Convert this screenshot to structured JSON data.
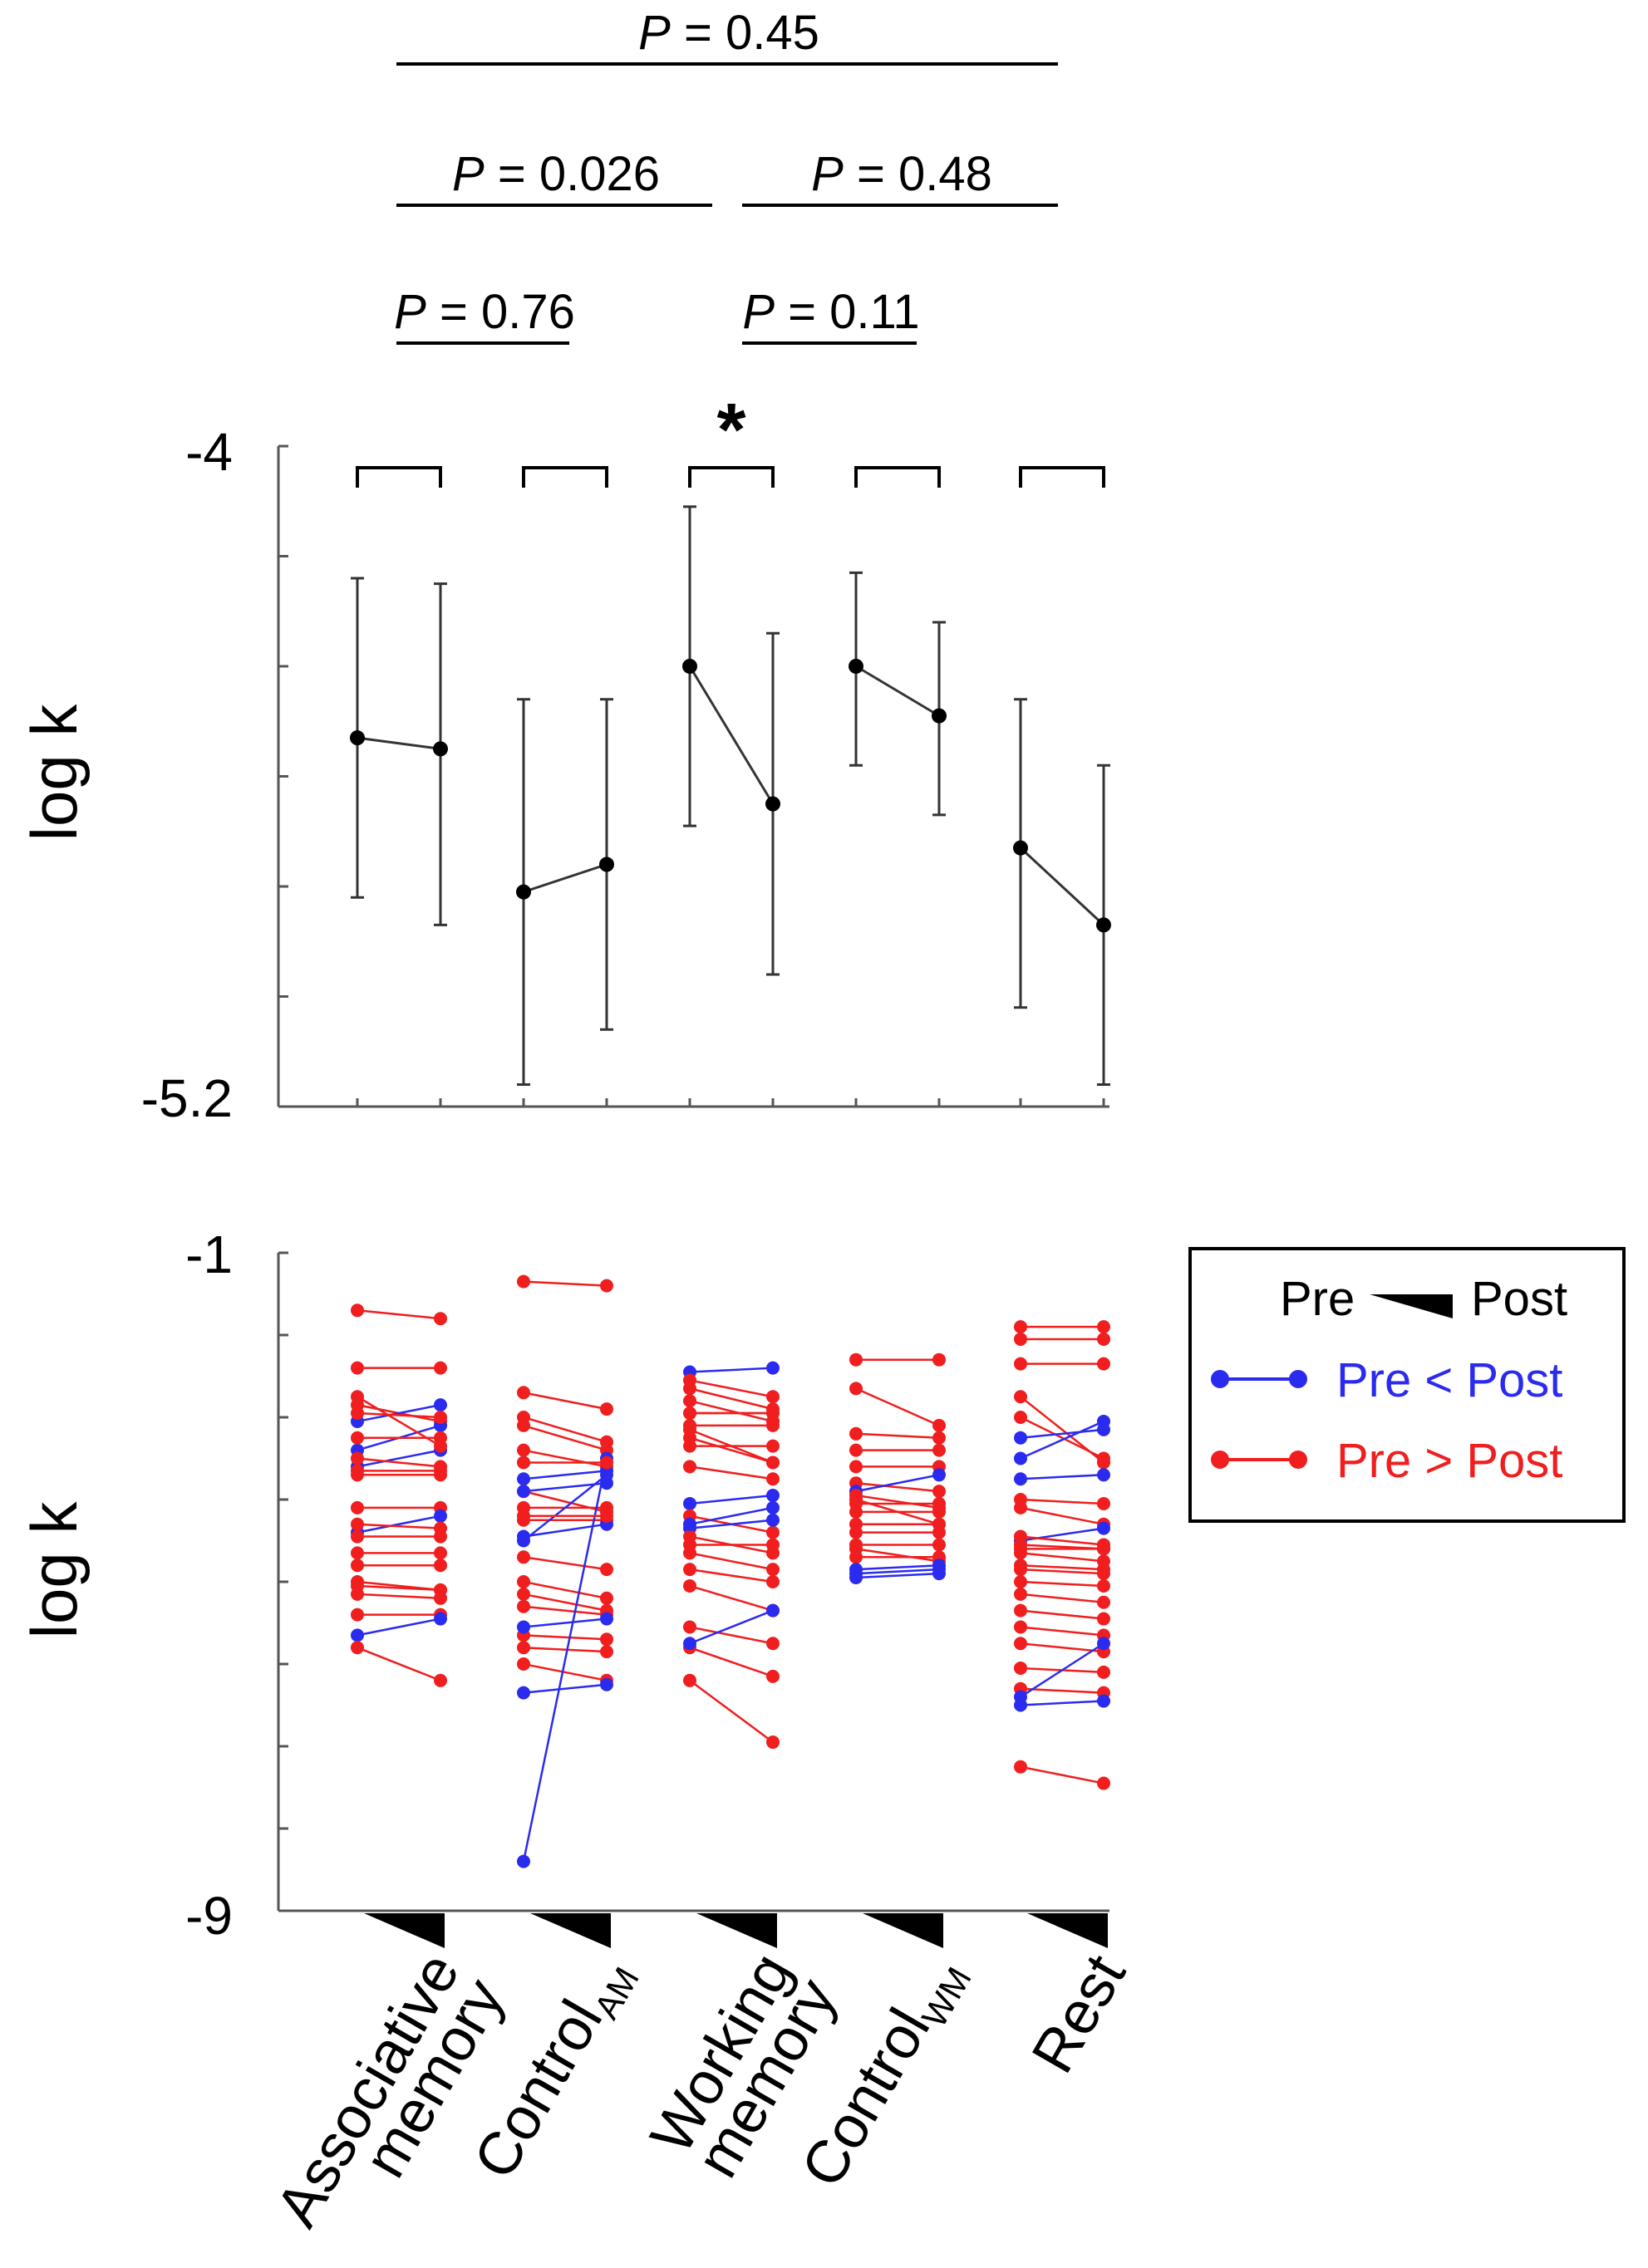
{
  "chart_data": [
    {
      "type": "line",
      "panel": "top",
      "ylabel": "log k",
      "ylim": [
        -5.2,
        -4
      ],
      "y_tick_labels": [
        "-4",
        "-5.2"
      ],
      "groups": [
        "Associative memory",
        "ControlAM",
        "Working memory",
        "ControlWM",
        "Rest"
      ],
      "pre": {
        "mean": [
          -4.53,
          -4.81,
          -4.4,
          -4.4,
          -4.73
        ],
        "lower": [
          -4.82,
          -5.16,
          -4.69,
          -4.58,
          -5.02
        ],
        "upper": [
          -4.24,
          -4.46,
          -4.11,
          -4.23,
          -4.46
        ]
      },
      "post": {
        "mean": [
          -4.55,
          -4.76,
          -4.65,
          -4.49,
          -4.87
        ],
        "lower": [
          -4.87,
          -5.06,
          -4.96,
          -4.67,
          -5.16
        ],
        "upper": [
          -4.25,
          -4.46,
          -4.34,
          -4.32,
          -4.58
        ]
      },
      "significance_marks": [
        "",
        "",
        "*",
        "",
        ""
      ],
      "comparisons": [
        {
          "label": "P = 0.45",
          "from": 0,
          "to": 3
        },
        {
          "label": "P = 0.026",
          "from": 0,
          "to": 1
        },
        {
          "label": "P = 0.48",
          "from": 2,
          "to": 3
        },
        {
          "label": "P = 0.76",
          "from": 0,
          "to": 1
        },
        {
          "label": "P = 0.11",
          "from": 2,
          "to": 3
        }
      ]
    },
    {
      "type": "line",
      "panel": "bottom",
      "ylabel": "log k",
      "ylim": [
        -9,
        -1
      ],
      "y_tick_labels": [
        "-1",
        "-9"
      ],
      "x_tick_labels": [
        {
          "main": "Associative",
          "second": "memory",
          "sub": ""
        },
        {
          "main": "Control",
          "second": "",
          "sub": "AM"
        },
        {
          "main": "Working",
          "second": "memory",
          "sub": ""
        },
        {
          "main": "Control",
          "second": "",
          "sub": "WM"
        },
        {
          "main": "Rest",
          "second": "",
          "sub": ""
        }
      ],
      "legend": {
        "position": "right",
        "title_left": "Pre",
        "title_right": "Post",
        "entries": [
          "Pre < Post",
          "Pre > Post"
        ]
      },
      "colors": {
        "increase": "#2b2bf0",
        "decrease": "#f01e1e"
      },
      "subjects": [
        [
          [
            -1.7,
            -1.8
          ],
          [
            -2.4,
            -2.4
          ],
          [
            -2.85,
            -3.05
          ],
          [
            -3.05,
            -2.85
          ],
          [
            -3.4,
            -3.1
          ],
          [
            -3.6,
            -3.4
          ],
          [
            -3.7,
            -3.7
          ],
          [
            -2.75,
            -3.35
          ],
          [
            -2.95,
            -3.0
          ],
          [
            -3.25,
            -3.25
          ],
          [
            -3.5,
            -3.6
          ],
          [
            -3.65,
            -3.65
          ],
          [
            -4.1,
            -4.1
          ],
          [
            -4.4,
            -4.2
          ],
          [
            -4.45,
            -4.45
          ],
          [
            -4.65,
            -4.65
          ],
          [
            -4.8,
            -4.8
          ],
          [
            -5.0,
            -5.1
          ],
          [
            -5.05,
            -5.1
          ],
          [
            -5.15,
            -5.2
          ],
          [
            -5.4,
            -5.4
          ],
          [
            -4.3,
            -4.35
          ],
          [
            -5.65,
            -5.45
          ],
          [
            -5.8,
            -6.2
          ]
        ],
        [
          [
            -1.35,
            -1.4
          ],
          [
            -2.7,
            -2.9
          ],
          [
            -3.0,
            -3.3
          ],
          [
            -3.1,
            -3.4
          ],
          [
            -3.4,
            -3.6
          ],
          [
            -3.75,
            -3.65
          ],
          [
            -3.9,
            -4.15
          ],
          [
            -4.1,
            -4.1
          ],
          [
            -4.25,
            -4.25
          ],
          [
            -4.5,
            -3.7
          ],
          [
            -4.45,
            -4.3
          ],
          [
            -4.7,
            -4.85
          ],
          [
            -5.0,
            -5.2
          ],
          [
            -5.15,
            -5.35
          ],
          [
            -5.3,
            -5.4
          ],
          [
            -5.65,
            -5.7
          ],
          [
            -5.55,
            -5.45
          ],
          [
            -5.8,
            -5.85
          ],
          [
            -6.0,
            -6.2
          ],
          [
            -6.35,
            -6.25
          ],
          [
            -8.4,
            -3.5
          ],
          [
            -3.55,
            -3.55
          ],
          [
            -3.9,
            -3.8
          ],
          [
            -4.2,
            -4.2
          ]
        ],
        [
          [
            -2.45,
            -2.4
          ],
          [
            -2.55,
            -2.75
          ],
          [
            -2.65,
            -2.9
          ],
          [
            -2.8,
            -3.05
          ],
          [
            -2.95,
            -2.95
          ],
          [
            -3.1,
            -3.1
          ],
          [
            -3.25,
            -3.55
          ],
          [
            -3.35,
            -3.35
          ],
          [
            -3.6,
            -3.75
          ],
          [
            -4.05,
            -3.95
          ],
          [
            -4.2,
            -4.4
          ],
          [
            -4.35,
            -4.25
          ],
          [
            -4.45,
            -4.65
          ],
          [
            -4.65,
            -4.85
          ],
          [
            -4.85,
            -5.0
          ],
          [
            -5.05,
            -5.35
          ],
          [
            -5.55,
            -5.75
          ],
          [
            -5.8,
            -6.15
          ],
          [
            -6.2,
            -6.95
          ],
          [
            -2.95,
            -2.95
          ],
          [
            -3.15,
            -3.55
          ],
          [
            -4.3,
            -4.1
          ],
          [
            -4.55,
            -4.55
          ],
          [
            -5.75,
            -5.35
          ]
        ],
        [
          [
            -2.3,
            -2.3
          ],
          [
            -2.65,
            -3.1
          ],
          [
            -3.2,
            -3.25
          ],
          [
            -3.4,
            -3.4
          ],
          [
            -3.6,
            -3.6
          ],
          [
            -3.8,
            -3.9
          ],
          [
            -3.9,
            -3.7
          ],
          [
            -4.05,
            -4.05
          ],
          [
            -4.15,
            -4.15
          ],
          [
            -4.3,
            -4.3
          ],
          [
            -4.4,
            -4.4
          ],
          [
            -4.55,
            -4.55
          ],
          [
            -4.7,
            -4.7
          ],
          [
            -4.0,
            -4.3
          ],
          [
            -3.95,
            -4.1
          ],
          [
            -4.6,
            -4.75
          ],
          [
            -4.85,
            -4.8
          ],
          [
            -4.9,
            -4.85
          ],
          [
            -4.95,
            -4.9
          ]
        ],
        [
          [
            -1.9,
            -1.9
          ],
          [
            -2.35,
            -2.35
          ],
          [
            -2.75,
            -3.55
          ],
          [
            -3.0,
            -3.5
          ],
          [
            -3.25,
            -3.15
          ],
          [
            -3.5,
            -3.05
          ],
          [
            -3.75,
            -3.7
          ],
          [
            -4.0,
            -4.05
          ],
          [
            -4.1,
            -4.3
          ],
          [
            -4.5,
            -4.35
          ],
          [
            -4.55,
            -4.6
          ],
          [
            -4.65,
            -4.75
          ],
          [
            -4.8,
            -4.85
          ],
          [
            -5.0,
            -5.05
          ],
          [
            -5.15,
            -5.25
          ],
          [
            -5.35,
            -5.45
          ],
          [
            -5.55,
            -5.65
          ],
          [
            -5.75,
            -5.85
          ],
          [
            -6.05,
            -6.1
          ],
          [
            -6.3,
            -6.35
          ],
          [
            -6.5,
            -6.45
          ],
          [
            -6.4,
            -5.75
          ],
          [
            -7.25,
            -7.45
          ],
          [
            -4.45,
            -4.55
          ],
          [
            -4.6,
            -4.6
          ],
          [
            -4.85,
            -4.9
          ],
          [
            -2.05,
            -2.05
          ]
        ]
      ]
    }
  ]
}
